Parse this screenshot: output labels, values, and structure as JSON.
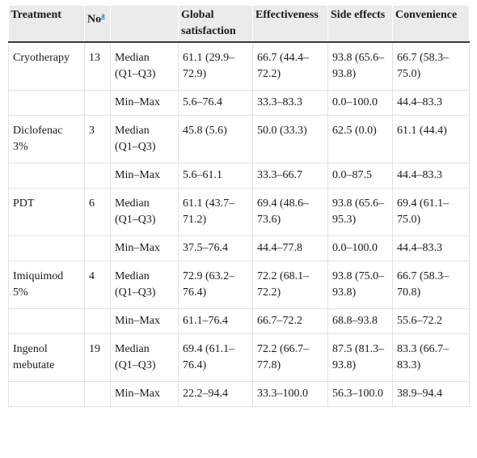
{
  "headers": {
    "treatment": "Treatment",
    "no": "No",
    "no_footnote": "a",
    "stat": "",
    "global": "Global satisfaction",
    "effectiveness": "Effectiveness",
    "side_effects": "Side effects",
    "convenience": "Convenience"
  },
  "rows": [
    {
      "treatment": "Cryotherapy",
      "no": "13",
      "median": {
        "label": "Median (Q1–Q3)",
        "global": "61.1 (29.9–72.9)",
        "effectiveness": "66.7 (44.4–72.2)",
        "side_effects": "93.8 (65.6–93.8)",
        "convenience": "66.7 (58.3–75.0)"
      },
      "minmax": {
        "label": "Min–Max",
        "global": "5.6–76.4",
        "effectiveness": "33.3–83.3",
        "side_effects": "0.0–100.0",
        "convenience": "44.4–83.3"
      }
    },
    {
      "treatment": "Diclofenac 3%",
      "no": "3",
      "median": {
        "label": "Median (Q1–Q3)",
        "global": "45.8 (5.6)",
        "effectiveness": "50.0 (33.3)",
        "side_effects": "62.5 (0.0)",
        "convenience": "61.1 (44.4)"
      },
      "minmax": {
        "label": "Min–Max",
        "global": "5.6–61.1",
        "effectiveness": "33.3–66.7",
        "side_effects": "0.0–87.5",
        "convenience": "44.4–83.3"
      }
    },
    {
      "treatment": "PDT",
      "no": "6",
      "median": {
        "label": "Median (Q1–Q3)",
        "global": "61.1 (43.7–71.2)",
        "effectiveness": "69.4 (48.6–73.6)",
        "side_effects": "93.8 (65.6–95.3)",
        "convenience": "69.4 (61.1–75.0)"
      },
      "minmax": {
        "label": "Min–Max",
        "global": "37.5–76.4",
        "effectiveness": "44.4–77.8",
        "side_effects": "0.0–100.0",
        "convenience": "44.4–83.3"
      }
    },
    {
      "treatment": "Imiquimod 5%",
      "no": "4",
      "median": {
        "label": "Median (Q1–Q3)",
        "global": "72.9 (63.2–76.4)",
        "effectiveness": "72.2 (68.1–72.2)",
        "side_effects": "93.8 (75.0–93.8)",
        "convenience": "66.7 (58.3–70.8)"
      },
      "minmax": {
        "label": "Min–Max",
        "global": "61.1–76.4",
        "effectiveness": "66.7–72.2",
        "side_effects": "68.8–93.8",
        "convenience": "55.6–72.2"
      }
    },
    {
      "treatment": "Ingenol mebutate",
      "no": "19",
      "median": {
        "label": "Median (Q1–Q3)",
        "global": "69.4 (61.1–76.4)",
        "effectiveness": "72.2 (66.7–77.8)",
        "side_effects": "87.5 (81.3–93.8)",
        "convenience": "83.3 (66.7–83.3)"
      },
      "minmax": {
        "label": "Min–Max",
        "global": "22.2–94.4",
        "effectiveness": "33.3–100.0",
        "side_effects": "56.3–100.0",
        "convenience": "38.9–94.4"
      }
    }
  ]
}
